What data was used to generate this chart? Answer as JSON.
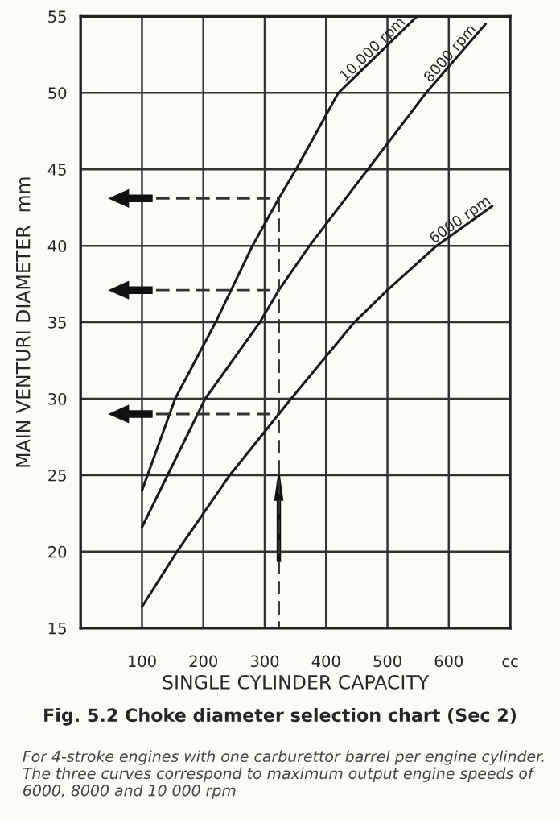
{
  "chart_data": {
    "type": "line",
    "title": "Fig. 5.2 Choke diameter selection chart (Sec 2)",
    "xlabel": "SINGLE CYLINDER CAPACITY",
    "ylabel": "MAIN VENTURI DIAMETER  mm",
    "xlim": [
      0,
      700
    ],
    "ylim": [
      15,
      55
    ],
    "xticks": [
      100,
      200,
      300,
      400,
      500,
      600,
      {
        "value": 700,
        "label": "cc"
      }
    ],
    "yticks": [
      15,
      20,
      25,
      30,
      35,
      40,
      45,
      50,
      55
    ],
    "grid": true,
    "legend": false,
    "marker": "none",
    "series": [
      {
        "name": "10,000 rpm",
        "color": "#1a1a1a",
        "x": [
          100,
          154,
          220,
          280,
          323,
          351,
          420,
          548
        ],
        "values": [
          24,
          30,
          35,
          40,
          43.1,
          45,
          50,
          55
        ]
      },
      {
        "name": "8000 rpm",
        "color": "#1a1a1a",
        "x": [
          100,
          203,
          292,
          323,
          373,
          468,
          563,
          660
        ],
        "values": [
          21.6,
          30,
          35,
          37.1,
          40,
          45,
          50,
          54.5
        ]
      },
      {
        "name": "6000 rpm",
        "color": "#1a1a1a",
        "x": [
          100,
          157,
          243,
          323,
          343,
          446,
          500,
          580,
          671
        ],
        "values": [
          16.4,
          20,
          25,
          29,
          30,
          35,
          37.1,
          40,
          42.6
        ]
      },
      {
        "color": "#333333",
        "line_style": "dashed",
        "x": [
          123,
          323
        ],
        "values": [
          43.1,
          43.1
        ]
      },
      {
        "color": "#333333",
        "line_style": "dashed",
        "x": [
          323,
          323
        ],
        "values": [
          43.1,
          15
        ]
      },
      {
        "color": "#333333",
        "line_style": "dashed",
        "x": [
          123,
          323
        ],
        "values": [
          37.1,
          37.1
        ]
      },
      {
        "color": "#333333",
        "line_style": "dashed",
        "x": [
          123,
          323
        ],
        "values": [
          29,
          29
        ]
      }
    ],
    "annotations": [
      "For 4-stroke engines with one carburettor barrel per engine cylinder. The three curves correspond to maximum output engine speeds of 6000, 8000 and 10 000 rpm"
    ]
  }
}
